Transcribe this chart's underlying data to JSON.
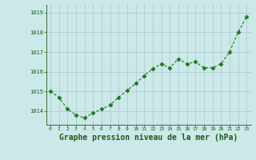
{
  "x": [
    0,
    1,
    2,
    3,
    4,
    5,
    6,
    7,
    8,
    9,
    10,
    11,
    12,
    13,
    14,
    15,
    16,
    17,
    18,
    19,
    20,
    21,
    22,
    23
  ],
  "y": [
    1015.0,
    1014.7,
    1014.1,
    1013.8,
    1013.65,
    1013.9,
    1014.1,
    1014.3,
    1014.7,
    1015.05,
    1015.4,
    1015.8,
    1016.15,
    1016.4,
    1016.2,
    1016.65,
    1016.4,
    1016.5,
    1016.2,
    1016.2,
    1016.4,
    1017.0,
    1018.0,
    1018.8
  ],
  "line_color": "#1a7a1a",
  "marker": "D",
  "marker_size": 2.5,
  "bg_color": "#cce8e8",
  "grid_color": "#aacfcf",
  "title": "Graphe pression niveau de la mer (hPa)",
  "title_color": "#1a5c1a",
  "title_fontsize": 7.0,
  "tick_label_color": "#1a5c1a",
  "ylim": [
    1013.3,
    1019.4
  ],
  "yticks": [
    1014,
    1015,
    1016,
    1017,
    1018,
    1019
  ],
  "xlim": [
    -0.5,
    23.5
  ],
  "xticks": [
    0,
    1,
    2,
    3,
    4,
    5,
    6,
    7,
    8,
    9,
    10,
    11,
    12,
    13,
    14,
    15,
    16,
    17,
    18,
    19,
    20,
    21,
    22,
    23
  ]
}
